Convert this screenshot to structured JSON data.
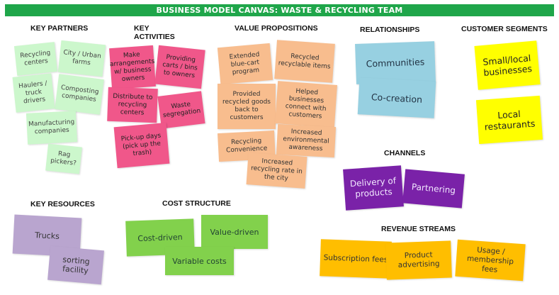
{
  "banner": "BUSINESS MODEL CANVAS: WASTE & RECYCLING TEAM",
  "sections": {
    "key_partners": "KEY PARTNERS",
    "key_activities": "KEY\nACTIVITIES",
    "value_propositions": "VALUE PROPOSITIONS",
    "relationships": "RELATIONSHIPS",
    "customer_segments": "CUSTOMER SEGMENTS",
    "channels": "CHANNELS",
    "key_resources": "KEY RESOURCES",
    "cost_structure": "COST STRUCTURE",
    "revenue_streams": "REVENUE STREAMS"
  },
  "key_partners": [
    "Recycling centers",
    "City / Urban farms",
    "Haulers / truck drivers",
    "Composting companies",
    "Manufacturing companies",
    "Rag pickers?"
  ],
  "key_activities": [
    "Make arrangements w/ business owners",
    "Providing carts / bins to owners",
    "Distribute to recycling centers",
    "Waste segregation",
    "Pick-up days (pick up the trash)"
  ],
  "value_propositions": [
    "Extended blue-cart program",
    "Recycled recyclable items",
    "Provided recycled goods back to customers",
    "Helped businesses connect with customers",
    "Recycling Convenience",
    "Increased environmental awareness",
    "Increased recycling rate in the city"
  ],
  "relationships": [
    "Communities",
    "Co-creation"
  ],
  "customer_segments": [
    "Small/local businesses",
    "Local restaurants"
  ],
  "channels": [
    "Delivery of products",
    "Partnering"
  ],
  "key_resources": [
    "Trucks",
    "sorting facility"
  ],
  "cost_structure": [
    "Cost-driven",
    "Value-driven",
    "Variable costs"
  ],
  "revenue_streams": [
    "Subscription fees",
    "Product advertising",
    "Usage / membership fees"
  ],
  "colors": {
    "banner": "#1fa64a",
    "key_partners": "#ccf7cc",
    "key_activities": "#f0578a",
    "value_propositions": "#f8bd8e",
    "relationships": "#97d0e1",
    "customer_segments": "#ffff00",
    "channels": "#7a22a8",
    "key_resources": "#b9a5cf",
    "cost_structure": "#82d14c",
    "revenue_streams": "#ffbe00"
  }
}
